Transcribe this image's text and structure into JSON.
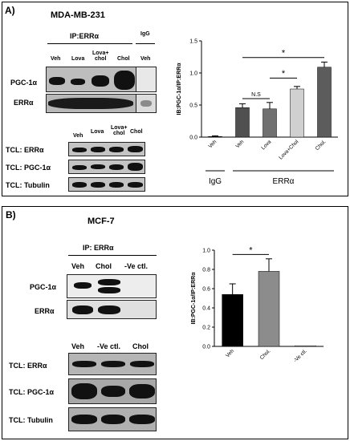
{
  "panel_a": {
    "label": "A)",
    "cell_line": "MDA-MB-231",
    "ip_label": "IP:ERRα",
    "igg_label": "IgG",
    "ip_lanes": [
      "Veh",
      "Lova",
      "Lova+\nchol",
      "Chol",
      "Veh"
    ],
    "blot_rows": [
      "PGC-1α",
      "ERRα"
    ],
    "tcl_lanes": [
      "Veh",
      "Lova",
      "Lova+\nchol",
      "Chol"
    ],
    "tcl_rows": [
      "TCL: ERRα",
      "TCL: PGC-1α",
      "TCL: Tubulin"
    ],
    "group_labels": [
      "IgG",
      "ERRα"
    ]
  },
  "panel_b": {
    "label": "B)",
    "cell_line": "MCF-7",
    "ip_label": "IP: ERRα",
    "ip_lanes": [
      "Veh",
      "Chol",
      "-Ve ctl."
    ],
    "blot_rows": [
      "PGC-1α",
      "ERRα"
    ],
    "tcl_lanes": [
      "Veh",
      "-Ve ctl.",
      "Chol"
    ],
    "tcl_rows": [
      "TCL: ERRα",
      "TCL: PGC-1α",
      "TCL: Tubulin"
    ]
  },
  "chart_data": [
    {
      "type": "bar",
      "categories": [
        "Veh",
        "Veh",
        "Lova",
        "Lova+Chol",
        "Chol."
      ],
      "values": [
        0.01,
        0.46,
        0.44,
        0.75,
        1.09
      ],
      "errors": [
        0.01,
        0.06,
        0.1,
        0.04,
        0.08
      ],
      "colors": [
        "#111111",
        "#505050",
        "#707070",
        "#d0d0d0",
        "#5c5c5c"
      ],
      "ylabel": "IB:PGC-1α/IP:ERRα",
      "ylim": [
        0,
        1.5
      ],
      "yticks": [
        "0.0",
        "0.5",
        "1.0",
        "1.5"
      ],
      "annotations": [
        "*",
        "N.S",
        "*"
      ]
    },
    {
      "type": "bar",
      "categories": [
        "Veh",
        "Chol.",
        "-Ve ctl."
      ],
      "values": [
        0.54,
        0.78,
        0.0
      ],
      "errors": [
        0.11,
        0.13,
        0.0
      ],
      "colors": [
        "#000000",
        "#8c8c8c",
        "#ffffff"
      ],
      "ylabel": "IB:PGC-1α/IP:ERRα",
      "ylim": [
        0,
        1.0
      ],
      "yticks": [
        "0.0",
        "0.2",
        "0.4",
        "0.6",
        "0.8",
        "1.0"
      ],
      "annotations": [
        "*"
      ]
    }
  ]
}
